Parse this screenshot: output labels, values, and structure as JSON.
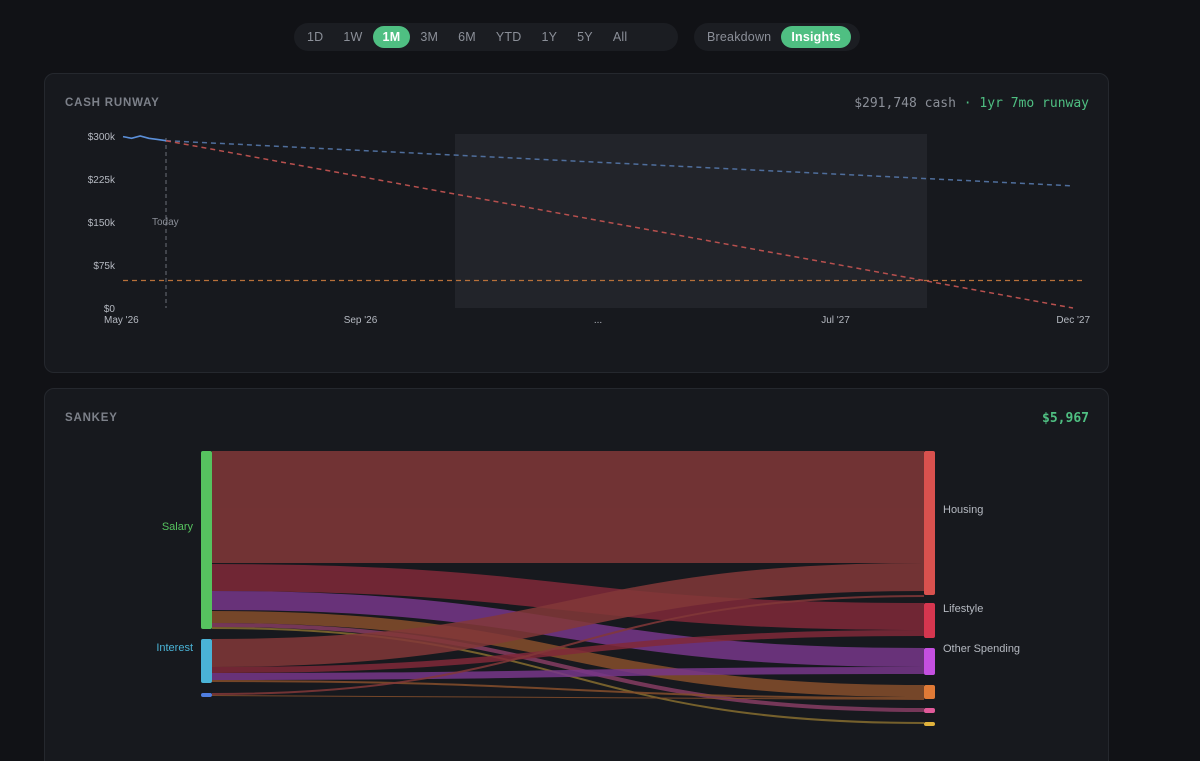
{
  "range_tabs": [
    {
      "label": "1D",
      "active": false
    },
    {
      "label": "1W",
      "active": false
    },
    {
      "label": "1M",
      "active": true
    },
    {
      "label": "3M",
      "active": false
    },
    {
      "label": "6M",
      "active": false
    },
    {
      "label": "YTD",
      "active": false
    },
    {
      "label": "1Y",
      "active": false
    },
    {
      "label": "5Y",
      "active": false
    },
    {
      "label": "All",
      "active": false
    }
  ],
  "view_tabs": [
    {
      "label": "Breakdown",
      "active": false
    },
    {
      "label": "Insights",
      "active": true
    }
  ],
  "runway_card": {
    "title": "CASH RUNWAY",
    "cash_text": "$291,748 cash",
    "separator": " · ",
    "runway_text": "1yr 7mo runway",
    "today_label": "Today",
    "ellipsis_label": "...",
    "colors": {
      "actual": "#5b8fd9",
      "slow_burn": "#4f6e9c",
      "fast_burn": "#b8504e",
      "floor": "#b8703a",
      "gap_band": "#22242a",
      "accent": "#4fbf82"
    }
  },
  "chart_data": {
    "type": "line",
    "ylabel": "",
    "xlabel": "",
    "y_ticks": [
      {
        "label": "$300k",
        "value": 300000
      },
      {
        "label": "$225k",
        "value": 225000
      },
      {
        "label": "$150k",
        "value": 150000
      },
      {
        "label": "$75k",
        "value": 75000
      },
      {
        "label": "$0",
        "value": 0
      }
    ],
    "ylim": [
      0,
      300000
    ],
    "x_ticks": [
      "May '26",
      "Sep '26",
      "...",
      "Jul '27",
      "Dec '27"
    ],
    "today": "May '26",
    "series": [
      {
        "values": [
          299000,
          296000,
          300000,
          296000,
          294000,
          291748
        ]
      },
      {
        "values_start": 291748,
        "values_end": 213000
      },
      {
        "values_start": 291748,
        "values_end": 0
      },
      {
        "values_const": 48000
      }
    ]
  },
  "sankey_card": {
    "title": "SANKEY",
    "total": "$5,967",
    "sources": [
      {
        "label": "Salary",
        "color": "#56c25f"
      },
      {
        "label": "Interest",
        "color": "#4ab3d6"
      },
      {
        "label": "",
        "color": "#4f7ee0"
      }
    ],
    "targets": [
      {
        "label": "Housing",
        "color": "#d9514e"
      },
      {
        "label": "Lifestyle",
        "color": "#d6364f"
      },
      {
        "label": "Other Spending",
        "color": "#c44fe0"
      },
      {
        "label": "",
        "color": "#e07a36"
      },
      {
        "label": "",
        "color": "#e05a9a"
      },
      {
        "label": "",
        "color": "#e0b23c"
      }
    ]
  }
}
